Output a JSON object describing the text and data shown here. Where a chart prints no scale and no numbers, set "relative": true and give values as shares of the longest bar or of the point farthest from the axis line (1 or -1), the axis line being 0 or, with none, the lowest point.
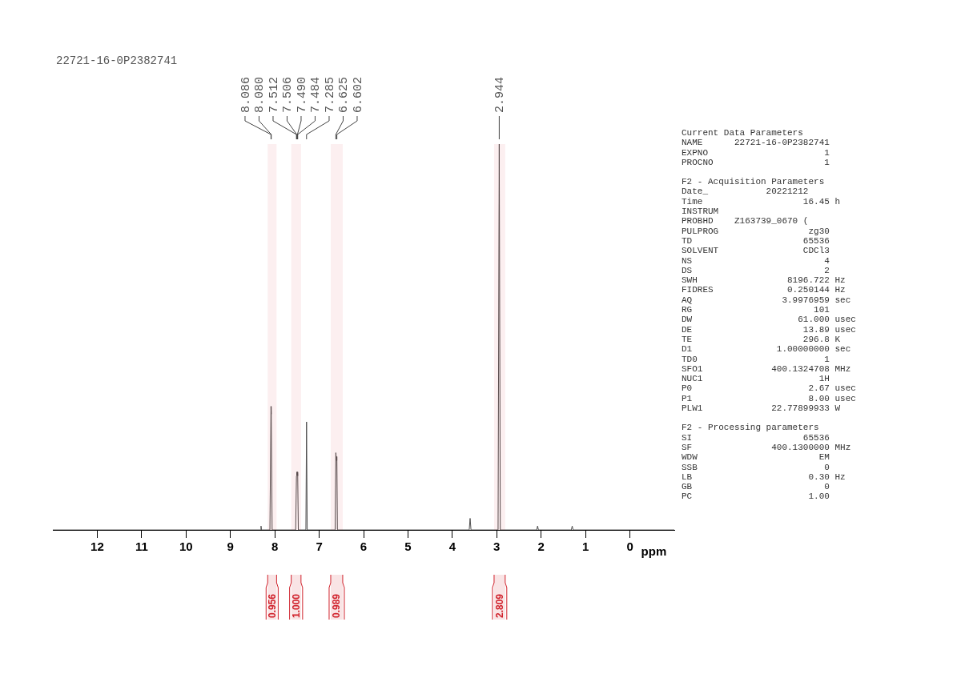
{
  "chart_data": [
    {
      "type": "line",
      "title": "22721-16-0P2382741",
      "xlabel": "ppm",
      "relative": true,
      "color": "#505050",
      "x": [
        13.0,
        8.32,
        8.31,
        8.3,
        8.11,
        8.086,
        8.083,
        8.08,
        8.06,
        7.53,
        7.512,
        7.506,
        7.49,
        7.484,
        7.47,
        7.3,
        7.285,
        7.27,
        6.64,
        6.625,
        6.613,
        6.602,
        6.59,
        3.62,
        3.6,
        3.58,
        2.97,
        2.944,
        2.92,
        2.1,
        2.08,
        2.06,
        1.32,
        1.3,
        1.28,
        -1.0
      ],
      "values": [
        0,
        0,
        0.01,
        0,
        0,
        0.32,
        0.3,
        0.32,
        0,
        0,
        0.14,
        0.15,
        0.15,
        0.14,
        0,
        0,
        0.28,
        0,
        0,
        0.2,
        0.18,
        0.19,
        0,
        0,
        0.03,
        0,
        0,
        1,
        0,
        0,
        0.01,
        0,
        0,
        0.01,
        0,
        0
      ],
      "xlim": [
        13,
        -1
      ],
      "xticks": [
        12,
        11,
        10,
        9,
        8,
        7,
        6,
        5,
        4,
        3,
        2,
        1,
        0
      ],
      "annotations": [
        {
          "text": "8.086",
          "x": 8.086
        },
        {
          "text": "8.080",
          "x": 8.08
        },
        {
          "text": "7.512",
          "x": 7.512
        },
        {
          "text": "7.506",
          "x": 7.506
        },
        {
          "text": "7.490",
          "x": 7.49
        },
        {
          "text": "7.484",
          "x": 7.484
        },
        {
          "text": "7.285",
          "x": 7.285
        },
        {
          "text": "6.625",
          "x": 6.625
        },
        {
          "text": "6.602",
          "x": 6.602
        },
        {
          "text": "2.944",
          "x": 2.944
        }
      ],
      "bands": [
        {
          "axis": "x",
          "from": 8.16,
          "to": 7.96,
          "label": "0.956",
          "color": "#d0202a"
        },
        {
          "axis": "x",
          "from": 7.63,
          "to": 7.41,
          "label": "1.000",
          "color": "#d0202a"
        },
        {
          "axis": "x",
          "from": 6.74,
          "to": 6.47,
          "label": "0.989",
          "color": "#d0202a"
        },
        {
          "axis": "x",
          "from": 3.06,
          "to": 2.81,
          "label": "2.809",
          "color": "#d0202a"
        }
      ]
    },
    {
      "type": "other",
      "title": "Current Data Parameters",
      "annotations": [
        "NAME      22721-16-0P2382741",
        "EXPNO                      1",
        "PROCNO                     1"
      ]
    },
    {
      "type": "other",
      "title": "F2 - Acquisition Parameters",
      "annotations": [
        "Date_           20221212",
        "Time                   16.45 h",
        "INSTRUM",
        "PROBHD    Z163739_0670 (",
        "PULPROG                 zg30",
        "TD                     65536",
        "SOLVENT                CDCl3",
        "NS                         4",
        "DS                         2",
        "SWH                 8196.722 Hz",
        "FIDRES              0.250144 Hz",
        "AQ                 3.9976959 sec",
        "RG                       101",
        "DW                    61.000 usec",
        "DE                     13.89 usec",
        "TE                     296.8 K",
        "D1                1.00000000 sec",
        "TD0                        1",
        "SFO1             400.1324708 MHz",
        "NUC1                      1H",
        "P0                      2.67 usec",
        "P1                      8.00 usec",
        "PLW1             22.77899933 W"
      ]
    },
    {
      "type": "other",
      "title": "F2 - Processing parameters",
      "annotations": [
        "SI                     65536",
        "SF               400.1300000 MHz",
        "WDW                       EM",
        "SSB                        0",
        "LB                      0.30 Hz",
        "GB                         0",
        "PC                      1.00"
      ]
    }
  ]
}
